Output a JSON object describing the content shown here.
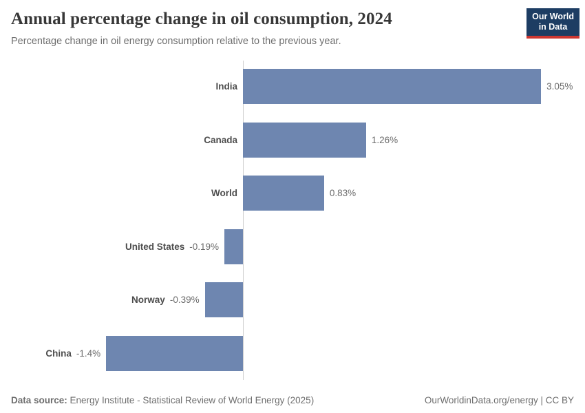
{
  "header": {
    "title": "Annual percentage change in oil consumption, 2024",
    "subtitle": "Percentage change in oil energy consumption relative to the previous year.",
    "logo": {
      "line1": "Our World",
      "line2": "in Data"
    }
  },
  "chart_data": {
    "type": "bar",
    "orientation": "horizontal",
    "categories": [
      "India",
      "Canada",
      "World",
      "United States",
      "Norway",
      "China"
    ],
    "values": [
      3.05,
      1.26,
      0.83,
      -0.19,
      -0.39,
      -1.4
    ],
    "value_labels": [
      "3.05%",
      "1.26%",
      "0.83%",
      "-0.19%",
      "-0.39%",
      "-1.4%"
    ],
    "title": "Annual percentage change in oil consumption, 2024",
    "xlabel": "",
    "ylabel": "",
    "xlim": [
      -1.4,
      3.05
    ],
    "grid": false,
    "legend": false,
    "bar_color": "#6e86b0",
    "axis_color": "#cfcfcf"
  },
  "footer": {
    "data_source_label": "Data source:",
    "data_source_text": " Energy Institute - Statistical Review of World Energy (2025)",
    "credit": "OurWorldinData.org/energy | CC BY"
  }
}
